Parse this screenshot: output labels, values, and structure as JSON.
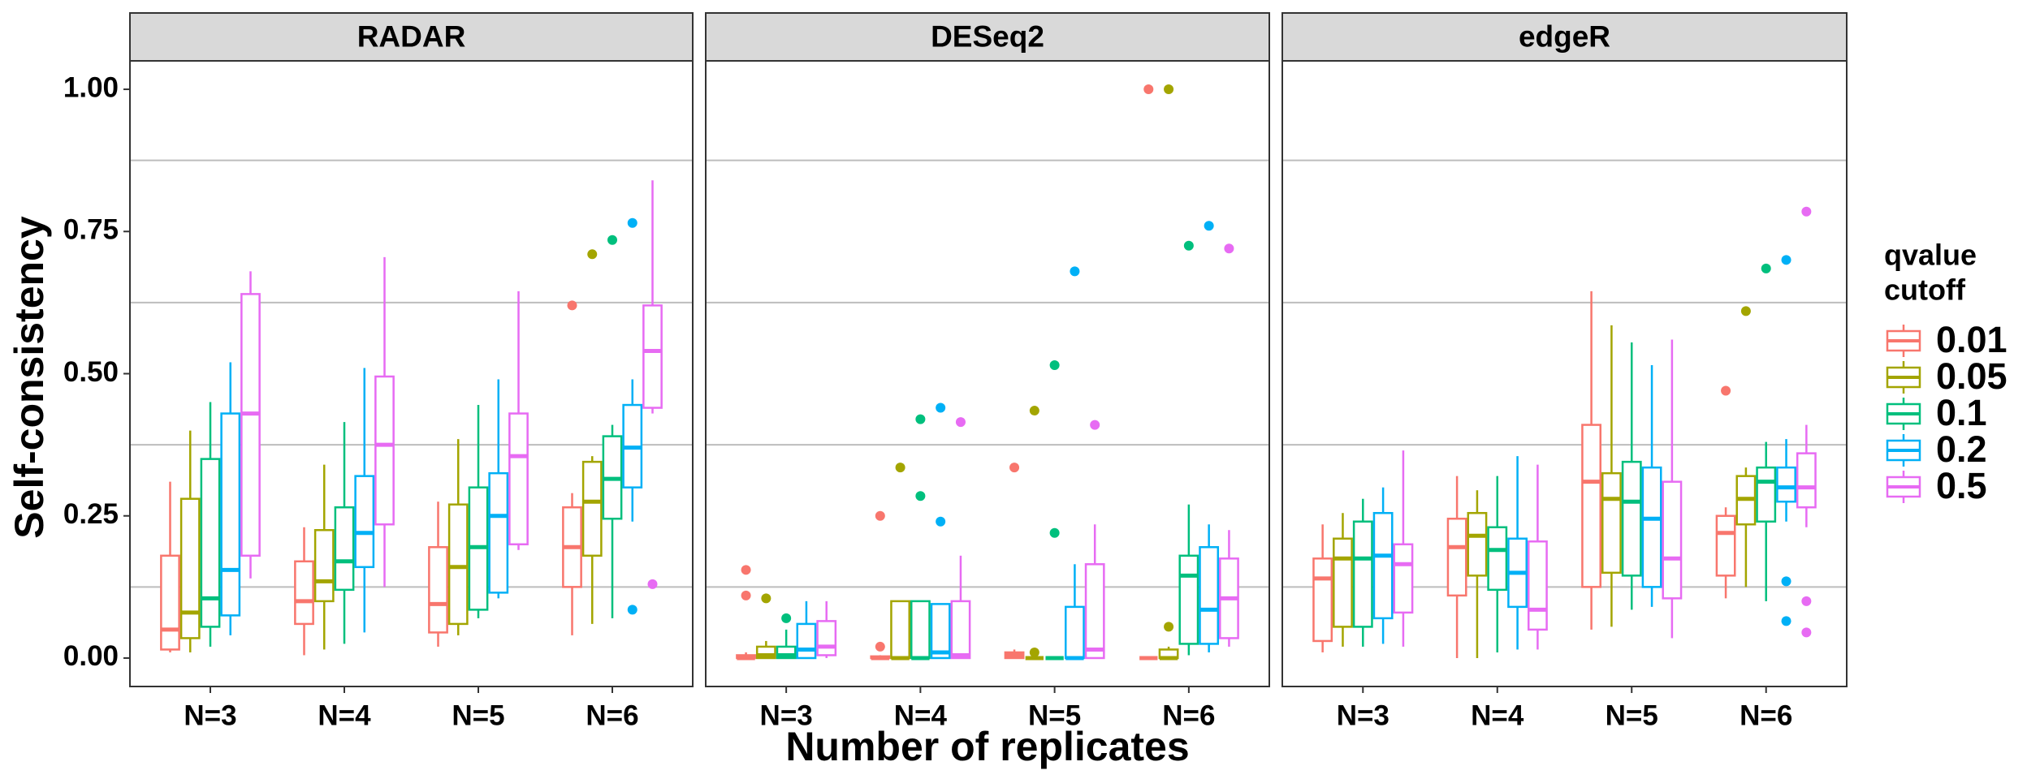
{
  "chart_data": {
    "type": "box",
    "ylabel": "Self-consistency",
    "xlabel": "Number of replicates",
    "legend_title": [
      "qvalue",
      "cutoff"
    ],
    "ylim": [
      -0.05,
      1.05
    ],
    "yticks": [
      {
        "value": 0,
        "label": "0.00"
      },
      {
        "value": 0.25,
        "label": "0.25"
      },
      {
        "value": 0.5,
        "label": "0.50"
      },
      {
        "value": 0.75,
        "label": "0.75"
      },
      {
        "value": 1,
        "label": "1.00"
      }
    ],
    "grid_lines": [
      0.125,
      0.375,
      0.625,
      0.875
    ],
    "categories": [
      "N=3",
      "N=4",
      "N=5",
      "N=6"
    ],
    "series": [
      {
        "name": "0.01",
        "color": "#F8766D"
      },
      {
        "name": "0.05",
        "color": "#A3A500"
      },
      {
        "name": "0.1",
        "color": "#00BF7D"
      },
      {
        "name": "0.2",
        "color": "#00B0F6"
      },
      {
        "name": "0.5",
        "color": "#E76BF3"
      }
    ],
    "facets": [
      {
        "title": "RADAR",
        "boxes": [
          [
            {
              "min": 0.01,
              "q1": 0.015,
              "median": 0.05,
              "q3": 0.18,
              "max": 0.31,
              "outliers": []
            },
            {
              "min": 0.005,
              "q1": 0.06,
              "median": 0.1,
              "q3": 0.17,
              "max": 0.23,
              "outliers": []
            },
            {
              "min": 0.02,
              "q1": 0.045,
              "median": 0.095,
              "q3": 0.195,
              "max": 0.275,
              "outliers": []
            },
            {
              "min": 0.04,
              "q1": 0.125,
              "median": 0.195,
              "q3": 0.265,
              "max": 0.29,
              "outliers": [
                0.62
              ]
            }
          ],
          [
            {
              "min": 0.01,
              "q1": 0.035,
              "median": 0.08,
              "q3": 0.28,
              "max": 0.4,
              "outliers": []
            },
            {
              "min": 0.015,
              "q1": 0.1,
              "median": 0.135,
              "q3": 0.225,
              "max": 0.34,
              "outliers": []
            },
            {
              "min": 0.04,
              "q1": 0.06,
              "median": 0.16,
              "q3": 0.27,
              "max": 0.385,
              "outliers": []
            },
            {
              "min": 0.06,
              "q1": 0.18,
              "median": 0.275,
              "q3": 0.345,
              "max": 0.355,
              "outliers": [
                0.71
              ]
            }
          ],
          [
            {
              "min": 0.02,
              "q1": 0.055,
              "median": 0.105,
              "q3": 0.35,
              "max": 0.45,
              "outliers": []
            },
            {
              "min": 0.025,
              "q1": 0.12,
              "median": 0.17,
              "q3": 0.265,
              "max": 0.415,
              "outliers": []
            },
            {
              "min": 0.07,
              "q1": 0.085,
              "median": 0.195,
              "q3": 0.3,
              "max": 0.445,
              "outliers": []
            },
            {
              "min": 0.07,
              "q1": 0.245,
              "median": 0.315,
              "q3": 0.39,
              "max": 0.41,
              "outliers": [
                0.735
              ]
            }
          ],
          [
            {
              "min": 0.04,
              "q1": 0.075,
              "median": 0.155,
              "q3": 0.43,
              "max": 0.52,
              "outliers": []
            },
            {
              "min": 0.045,
              "q1": 0.16,
              "median": 0.22,
              "q3": 0.32,
              "max": 0.51,
              "outliers": []
            },
            {
              "min": 0.105,
              "q1": 0.115,
              "median": 0.25,
              "q3": 0.325,
              "max": 0.49,
              "outliers": []
            },
            {
              "min": 0.24,
              "q1": 0.3,
              "median": 0.37,
              "q3": 0.445,
              "max": 0.49,
              "outliers": [
                0.765,
                0.085
              ]
            }
          ],
          [
            {
              "min": 0.14,
              "q1": 0.18,
              "median": 0.43,
              "q3": 0.64,
              "max": 0.68,
              "outliers": []
            },
            {
              "min": 0.125,
              "q1": 0.235,
              "median": 0.375,
              "q3": 0.495,
              "max": 0.705,
              "outliers": []
            },
            {
              "min": 0.19,
              "q1": 0.2,
              "median": 0.355,
              "q3": 0.43,
              "max": 0.645,
              "outliers": []
            },
            {
              "min": 0.43,
              "q1": 0.44,
              "median": 0.54,
              "q3": 0.62,
              "max": 0.84,
              "outliers": [
                0.13
              ]
            }
          ]
        ]
      },
      {
        "title": "DESeq2",
        "boxes": [
          [
            {
              "min": 0,
              "q1": 0,
              "median": 0,
              "q3": 0.005,
              "max": 0.01,
              "outliers": [
                0.155,
                0.11
              ]
            },
            {
              "min": 0,
              "q1": 0,
              "median": 0,
              "q3": 0.003,
              "max": 0.005,
              "outliers": [
                0.25,
                0.02
              ]
            },
            {
              "min": 0,
              "q1": 0,
              "median": 0.005,
              "q3": 0.01,
              "max": 0.015,
              "outliers": [
                0.335
              ]
            },
            {
              "min": 0,
              "q1": 0,
              "median": 0,
              "q3": 0,
              "max": 0,
              "outliers": [
                1.0
              ]
            }
          ],
          [
            {
              "min": 0,
              "q1": 0,
              "median": 0.005,
              "q3": 0.02,
              "max": 0.03,
              "outliers": [
                0.105
              ]
            },
            {
              "min": 0,
              "q1": 0,
              "median": 0,
              "q3": 0.1,
              "max": 0.1,
              "outliers": [
                0.335
              ]
            },
            {
              "min": 0,
              "q1": 0,
              "median": 0,
              "q3": 0,
              "max": 0,
              "outliers": [
                0.435,
                0.01
              ]
            },
            {
              "min": 0,
              "q1": 0,
              "median": 0,
              "q3": 0.015,
              "max": 0.02,
              "outliers": [
                1.0,
                0.055
              ]
            }
          ],
          [
            {
              "min": 0,
              "q1": 0,
              "median": 0.005,
              "q3": 0.02,
              "max": 0.05,
              "outliers": [
                0.07
              ]
            },
            {
              "min": 0,
              "q1": 0,
              "median": 0,
              "q3": 0.1,
              "max": 0.1,
              "outliers": [
                0.42,
                0.285
              ]
            },
            {
              "min": 0,
              "q1": 0,
              "median": 0,
              "q3": 0,
              "max": 0,
              "outliers": [
                0.515,
                0.22
              ]
            },
            {
              "min": 0.005,
              "q1": 0.025,
              "median": 0.145,
              "q3": 0.18,
              "max": 0.27,
              "outliers": [
                0.725
              ]
            }
          ],
          [
            {
              "min": 0,
              "q1": 0,
              "median": 0.015,
              "q3": 0.06,
              "max": 0.1,
              "outliers": []
            },
            {
              "min": 0,
              "q1": 0,
              "median": 0.01,
              "q3": 0.095,
              "max": 0.095,
              "outliers": [
                0.44,
                0.24
              ]
            },
            {
              "min": 0,
              "q1": 0,
              "median": 0,
              "q3": 0.09,
              "max": 0.165,
              "outliers": [
                0.68
              ]
            },
            {
              "min": 0.01,
              "q1": 0.025,
              "median": 0.085,
              "q3": 0.195,
              "max": 0.235,
              "outliers": [
                0.76
              ]
            }
          ],
          [
            {
              "min": 0,
              "q1": 0.005,
              "median": 0.02,
              "q3": 0.065,
              "max": 0.1,
              "outliers": []
            },
            {
              "min": 0,
              "q1": 0,
              "median": 0.005,
              "q3": 0.1,
              "max": 0.18,
              "outliers": [
                0.415
              ]
            },
            {
              "min": 0,
              "q1": 0,
              "median": 0.015,
              "q3": 0.165,
              "max": 0.235,
              "outliers": [
                0.41
              ]
            },
            {
              "min": 0.02,
              "q1": 0.035,
              "median": 0.105,
              "q3": 0.175,
              "max": 0.225,
              "outliers": [
                0.72
              ]
            }
          ]
        ]
      },
      {
        "title": "edgeR",
        "boxes": [
          [
            {
              "min": 0.01,
              "q1": 0.03,
              "median": 0.14,
              "q3": 0.175,
              "max": 0.235,
              "outliers": []
            },
            {
              "min": 0,
              "q1": 0.11,
              "median": 0.195,
              "q3": 0.245,
              "max": 0.32,
              "outliers": []
            },
            {
              "min": 0.05,
              "q1": 0.125,
              "median": 0.31,
              "q3": 0.41,
              "max": 0.645,
              "outliers": []
            },
            {
              "min": 0.105,
              "q1": 0.145,
              "median": 0.22,
              "q3": 0.25,
              "max": 0.265,
              "outliers": [
                0.47
              ]
            }
          ],
          [
            {
              "min": 0.02,
              "q1": 0.055,
              "median": 0.175,
              "q3": 0.21,
              "max": 0.255,
              "outliers": []
            },
            {
              "min": 0,
              "q1": 0.145,
              "median": 0.215,
              "q3": 0.255,
              "max": 0.295,
              "outliers": []
            },
            {
              "min": 0.055,
              "q1": 0.15,
              "median": 0.28,
              "q3": 0.325,
              "max": 0.585,
              "outliers": []
            },
            {
              "min": 0.125,
              "q1": 0.235,
              "median": 0.28,
              "q3": 0.32,
              "max": 0.335,
              "outliers": [
                0.61
              ]
            }
          ],
          [
            {
              "min": 0.02,
              "q1": 0.055,
              "median": 0.175,
              "q3": 0.24,
              "max": 0.28,
              "outliers": []
            },
            {
              "min": 0.01,
              "q1": 0.12,
              "median": 0.19,
              "q3": 0.23,
              "max": 0.32,
              "outliers": []
            },
            {
              "min": 0.085,
              "q1": 0.145,
              "median": 0.275,
              "q3": 0.345,
              "max": 0.555,
              "outliers": []
            },
            {
              "min": 0.1,
              "q1": 0.24,
              "median": 0.31,
              "q3": 0.335,
              "max": 0.38,
              "outliers": [
                0.685
              ]
            }
          ],
          [
            {
              "min": 0.025,
              "q1": 0.07,
              "median": 0.18,
              "q3": 0.255,
              "max": 0.3,
              "outliers": []
            },
            {
              "min": 0.015,
              "q1": 0.09,
              "median": 0.15,
              "q3": 0.21,
              "max": 0.355,
              "outliers": []
            },
            {
              "min": 0.09,
              "q1": 0.125,
              "median": 0.245,
              "q3": 0.335,
              "max": 0.515,
              "outliers": []
            },
            {
              "min": 0.24,
              "q1": 0.275,
              "median": 0.3,
              "q3": 0.335,
              "max": 0.385,
              "outliers": [
                0.7,
                0.135,
                0.065
              ]
            }
          ],
          [
            {
              "min": 0.02,
              "q1": 0.08,
              "median": 0.165,
              "q3": 0.2,
              "max": 0.365,
              "outliers": []
            },
            {
              "min": 0.015,
              "q1": 0.05,
              "median": 0.085,
              "q3": 0.205,
              "max": 0.34,
              "outliers": []
            },
            {
              "min": 0.035,
              "q1": 0.105,
              "median": 0.175,
              "q3": 0.31,
              "max": 0.56,
              "outliers": []
            },
            {
              "min": 0.23,
              "q1": 0.265,
              "median": 0.3,
              "q3": 0.36,
              "max": 0.41,
              "outliers": [
                0.785,
                0.1,
                0.045
              ]
            }
          ]
        ]
      }
    ]
  }
}
